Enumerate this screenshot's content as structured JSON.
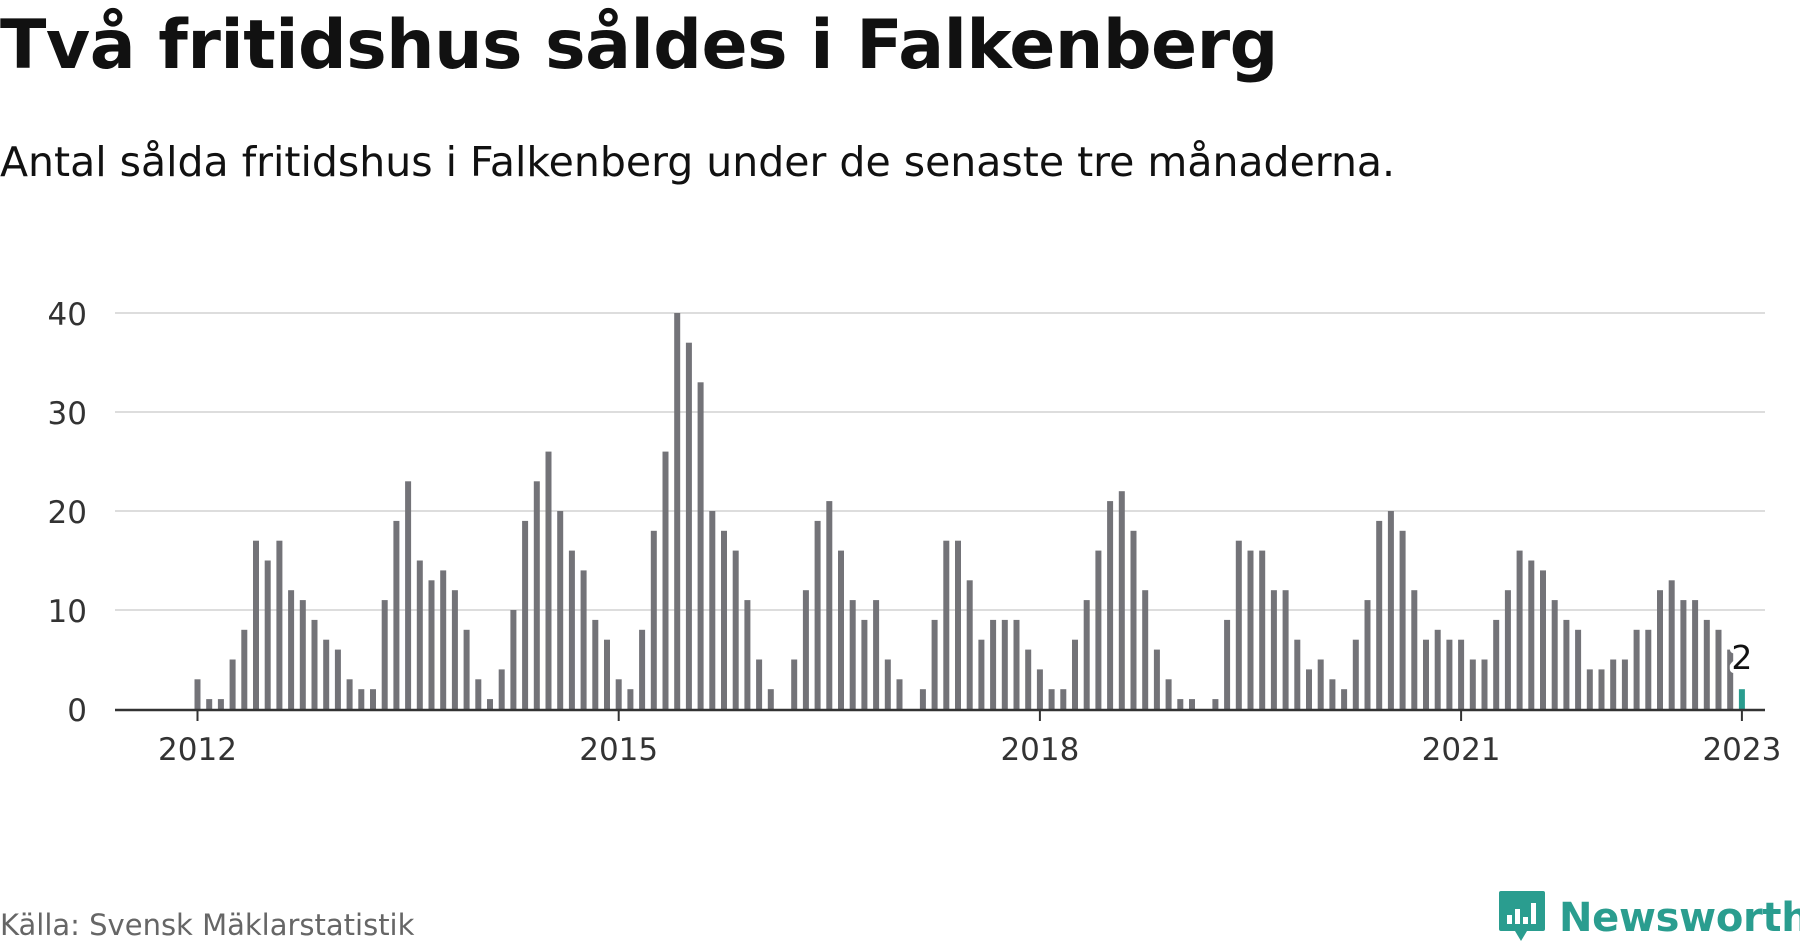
{
  "title": "Två fritidshus såldes i Falkenberg",
  "subtitle": "Antal sålda fritidshus i Falkenberg under de senaste tre månaderna.",
  "source": "Källa: Svensk Mäklarstatistik",
  "brand": {
    "name": "Newsworthy",
    "icon": "newsworthy-logo-icon"
  },
  "colors": {
    "bar": "#737378",
    "highlight": "#2a9d8f",
    "grid": "#dddddd",
    "axis": "#333333",
    "text": "#111111",
    "tick_text": "#333333"
  },
  "chart_data": {
    "type": "bar",
    "x_start": "2012-01",
    "x_end": "2023-01",
    "frequency": "monthly",
    "ylim": [
      0,
      40
    ],
    "y_ticks": [
      0,
      10,
      20,
      30,
      40
    ],
    "y_tick_labels": [
      "0",
      "10",
      "20",
      "30",
      "40"
    ],
    "x_ticks": [
      "2012-01",
      "2015-01",
      "2018-01",
      "2021-01",
      "2023-01"
    ],
    "x_tick_labels": [
      "2012",
      "2015",
      "2018",
      "2021",
      "2023"
    ],
    "grid": true,
    "highlight_last": true,
    "annotation": {
      "label": "2",
      "x": "2023-01",
      "value": 2
    },
    "values": [
      3,
      1,
      1,
      5,
      8,
      17,
      15,
      17,
      12,
      11,
      9,
      7,
      6,
      3,
      2,
      2,
      11,
      19,
      23,
      15,
      13,
      14,
      12,
      8,
      3,
      1,
      4,
      10,
      19,
      23,
      26,
      20,
      16,
      14,
      9,
      7,
      3,
      2,
      8,
      18,
      26,
      40,
      37,
      33,
      20,
      18,
      16,
      11,
      5,
      2,
      0,
      5,
      12,
      19,
      21,
      16,
      11,
      9,
      11,
      5,
      3,
      0,
      2,
      9,
      17,
      17,
      13,
      7,
      9,
      9,
      9,
      6,
      4,
      2,
      2,
      7,
      11,
      16,
      21,
      22,
      18,
      12,
      6,
      3,
      1,
      1,
      0,
      1,
      9,
      17,
      16,
      16,
      12,
      12,
      7,
      4,
      5,
      3,
      2,
      7,
      11,
      19,
      20,
      18,
      12,
      7,
      8,
      7,
      7,
      5,
      5,
      9,
      12,
      16,
      15,
      14,
      11,
      9,
      8,
      4,
      4,
      5,
      5,
      8,
      8,
      12,
      13,
      11,
      11,
      9,
      8,
      6,
      2
    ]
  }
}
